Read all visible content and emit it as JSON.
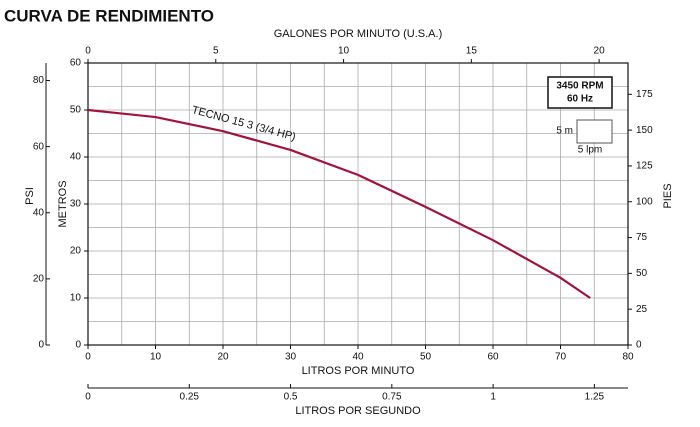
{
  "chart_data": {
    "type": "line",
    "title": "CURVA DE RENDIMIENTO",
    "xlabel": "LITROS POR MINUTO",
    "xlim": [
      0,
      80
    ],
    "xticks": [
      0,
      10,
      20,
      30,
      40,
      50,
      60,
      70,
      80
    ],
    "x2label": "GALONES POR MINUTO (U.S.A.)",
    "x2lim": [
      0,
      21.13
    ],
    "x2ticks": [
      0,
      5,
      10,
      15,
      20
    ],
    "x3label": "LITROS POR SEGUNDO",
    "x3lim": [
      0,
      1.333
    ],
    "x3ticks": [
      0,
      0.25,
      0.5,
      0.75,
      1,
      1.25
    ],
    "ylabel": "METROS",
    "ylim": [
      0,
      60
    ],
    "yticks": [
      0,
      10,
      20,
      30,
      40,
      50,
      60
    ],
    "y2label": "PIES",
    "y2lim": [
      0,
      196.85
    ],
    "y2ticks": [
      0,
      25,
      50,
      75,
      100,
      125,
      150,
      175
    ],
    "y3label": "PSI",
    "y3lim": [
      0,
      85.3
    ],
    "y3ticks": [
      0,
      20,
      40,
      60,
      80
    ],
    "grid": true,
    "series": [
      {
        "name": "TECNO 15 3 (3/4 HP)",
        "color": "#a0143c",
        "x": [
          0,
          10,
          20,
          30,
          40,
          50,
          60,
          70,
          74.4
        ],
        "values": [
          50,
          48.5,
          45.5,
          41.5,
          36.2,
          29.4,
          22.3,
          14.3,
          10
        ]
      }
    ],
    "annotations": [
      "3450 RPM",
      "60 Hz",
      "5 m",
      "5 lpm"
    ]
  }
}
